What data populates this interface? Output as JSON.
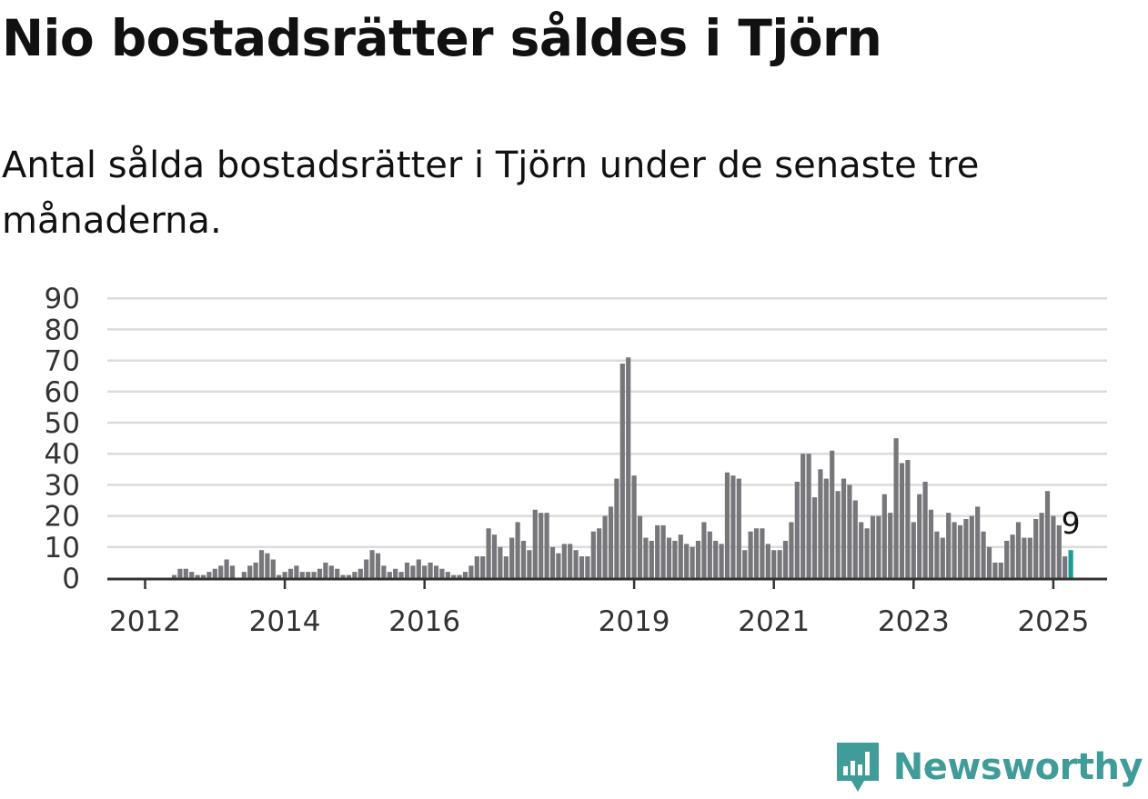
{
  "title": "Nio bostadsrätter såldes i Tjörn",
  "subtitle": "Antal sålda bostadsrätter i Tjörn under de senaste tre månaderna.",
  "brand": {
    "name": "Newsworthy",
    "logo_icon": "bar-chart-badge-icon",
    "color": "#3f9c98"
  },
  "chart_data": {
    "type": "bar",
    "title": "",
    "xlabel": "",
    "ylabel": "",
    "ylim": [
      0,
      90
    ],
    "yticks": [
      0,
      10,
      20,
      30,
      40,
      50,
      60,
      70,
      80,
      90
    ],
    "xticks": [
      {
        "label": "2012",
        "index": 6
      },
      {
        "label": "2014",
        "index": 30
      },
      {
        "label": "2016",
        "index": 54
      },
      {
        "label": "2019",
        "index": 90
      },
      {
        "label": "2021",
        "index": 114
      },
      {
        "label": "2023",
        "index": 138
      },
      {
        "label": "2025",
        "index": 162
      }
    ],
    "grid": true,
    "bar_color": "#77767b",
    "highlight_color": "#1a9b96",
    "highlight_label": "9",
    "series": [
      {
        "values": [
          0,
          0,
          0,
          0,
          0,
          0,
          0,
          0,
          0,
          0,
          0,
          1,
          3,
          3,
          2,
          1,
          1,
          2,
          3,
          4,
          6,
          4,
          0,
          2,
          4,
          5,
          9,
          8,
          6,
          1,
          2,
          3,
          4,
          2,
          2,
          2,
          3,
          5,
          4,
          3,
          1,
          1,
          2,
          3,
          6,
          9,
          8,
          4,
          2,
          3,
          2,
          5,
          4,
          6,
          4,
          5,
          4,
          3,
          2,
          1,
          1,
          2,
          4,
          7,
          7,
          16,
          14,
          10,
          7,
          13,
          18,
          12,
          9,
          22,
          21,
          21,
          10,
          8,
          11,
          11,
          9,
          7,
          7,
          15,
          16,
          20,
          23,
          32,
          69,
          71,
          33,
          20,
          13,
          12,
          17,
          17,
          13,
          12,
          14,
          11,
          10,
          12,
          18,
          15,
          12,
          11,
          34,
          33,
          32,
          9,
          15,
          16,
          16,
          11,
          9,
          9,
          12,
          18,
          31,
          40,
          40,
          26,
          35,
          32,
          41,
          28,
          32,
          30,
          25,
          18,
          16,
          20,
          20,
          27,
          21,
          45,
          37,
          38,
          18,
          27,
          31,
          22,
          15,
          13,
          21,
          18,
          17,
          19,
          20,
          23,
          15,
          10,
          5,
          5,
          12,
          14,
          18,
          13,
          13,
          19,
          21,
          28,
          20,
          17,
          7,
          9
        ]
      }
    ]
  }
}
